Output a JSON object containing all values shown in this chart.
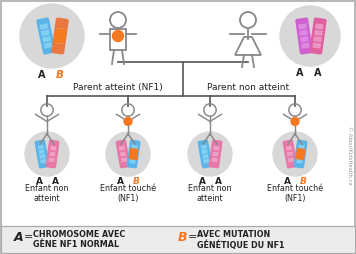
{
  "white": "#ffffff",
  "black": "#222222",
  "gray_circle": "#d8d8d8",
  "orange_dot": "#f47920",
  "line_color": "#555555",
  "border_color": "#aaaaaa",
  "legend_bg": "#ececec",
  "A_color": "#222222",
  "B_color": "#f47920",
  "parent_atteint_label": "Parent atteint (NF1)",
  "parent_non_label": "Parent non atteint",
  "children_labels": [
    "Enfant non\natteint",
    "Enfant touché\n(NF1)",
    "Enfant non\natteint",
    "Enfant touché\n(NF1)"
  ],
  "legend_A": "CHROMOSOME AVEC\nGÈNE NF1 NORMAL",
  "legend_B": "AVEC MUTATION\nGÉNÉTIQUE DU NF1",
  "watermark": "© AboutKidsHealth.ca",
  "chrom_configs": {
    "AB_parent": [
      {
        "base": "#5ab4e8",
        "bands": [
          "#89d4f5",
          "#89d4f5",
          "#89d4f5",
          "#89d4f5"
        ],
        "mutation_band": null,
        "tilt": -12
      },
      {
        "base": "#e87840",
        "bands": [
          "#f5a060",
          "#f5a060"
        ],
        "mutation_band": "#f47920",
        "tilt": 8
      }
    ],
    "AA_parent": [
      {
        "base": "#d060d0",
        "bands": [
          "#e090e8",
          "#e090e8",
          "#e090e8",
          "#e090e8"
        ],
        "mutation_band": null,
        "tilt": -8
      },
      {
        "base": "#e060a0",
        "bands": [
          "#eda0c8",
          "#eda0c8",
          "#eda0c8",
          "#eda0c8"
        ],
        "mutation_band": null,
        "tilt": 8
      }
    ],
    "AA_child1": [
      {
        "base": "#5ab4e8",
        "bands": [
          "#89d4f5",
          "#89d4f5",
          "#89d4f5",
          "#89d4f5"
        ],
        "mutation_band": null,
        "tilt": -10
      },
      {
        "base": "#e878a8",
        "bands": [
          "#f0a8c8",
          "#f0a8c8",
          "#f0a8c8"
        ],
        "mutation_band": null,
        "tilt": 8
      }
    ],
    "AB_child": [
      {
        "base": "#e878a8",
        "bands": [
          "#f0a8c8",
          "#f0a8c8",
          "#f0a8c8"
        ],
        "mutation_band": null,
        "tilt": -10
      },
      {
        "base": "#5ab4e8",
        "bands": [
          "#89d4f5",
          "#89d4f5",
          "#89d4f5",
          "#89d4f5"
        ],
        "mutation_band": "#f47920",
        "tilt": 8
      }
    ]
  },
  "figure_color": "#888888",
  "figure_color_dark": "#666666"
}
